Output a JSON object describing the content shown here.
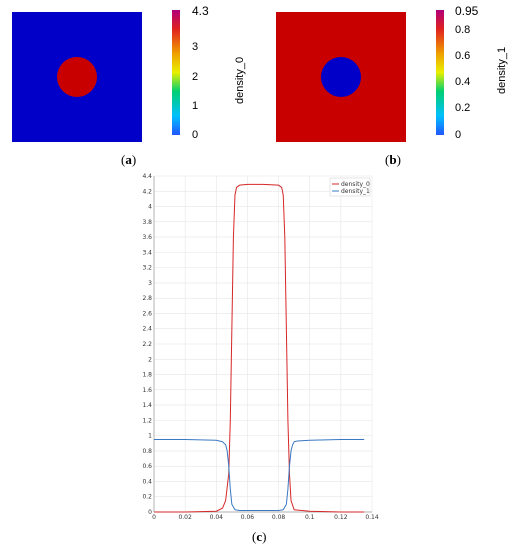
{
  "panels": {
    "a": {
      "label_open": "(",
      "label_letter": "a",
      "label_close": ")"
    },
    "b": {
      "label_open": "(",
      "label_letter": "b",
      "label_close": ")"
    },
    "c": {
      "label_open": "(",
      "label_letter": "c",
      "label_close": ")"
    }
  },
  "colors": {
    "low_blue": "#0000c8",
    "high_red": "#c80000",
    "series_density_0": "#d62728",
    "series_density_1": "#3a78c2"
  },
  "chart_data": [
    {
      "type": "heatmap",
      "panel": "a",
      "description_shape": "disk-in-square",
      "inside_value": 4.3,
      "outside_value": 0,
      "colorbar": {
        "title": "density_0",
        "range": [
          0,
          4.3
        ],
        "ticks": [
          "0",
          "1",
          "2",
          "3",
          "4.3"
        ],
        "tick_values": [
          0,
          1,
          2,
          3,
          4.3
        ]
      }
    },
    {
      "type": "heatmap",
      "panel": "b",
      "description_shape": "disk-in-square",
      "inside_value": 0,
      "outside_value": 0.95,
      "colorbar": {
        "title": "density_1",
        "range": [
          0,
          0.95
        ],
        "ticks": [
          "0",
          "0.2",
          "0.4",
          "0.6",
          "0.8",
          "0.95"
        ],
        "tick_values": [
          0,
          0.2,
          0.4,
          0.6,
          0.8,
          0.95
        ]
      }
    },
    {
      "type": "line",
      "panel": "c",
      "xlim": [
        0,
        0.14
      ],
      "ylim": [
        0,
        4.4
      ],
      "grid": true,
      "legend_position": "top-right",
      "x_ticks": [
        "0",
        "0.02",
        "0.04",
        "0.06",
        "0.08",
        "0.1",
        "0.12",
        "0.14"
      ],
      "x_tick_values": [
        0,
        0.02,
        0.04,
        0.06,
        0.08,
        0.1,
        0.12,
        0.14
      ],
      "y_ticks": [
        "0",
        "0.2",
        "0.4",
        "0.6",
        "0.8",
        "1",
        "1.2",
        "1.4",
        "1.6",
        "1.8",
        "2",
        "2.2",
        "2.4",
        "2.6",
        "2.8",
        "3",
        "3.2",
        "3.4",
        "3.6",
        "3.8",
        "4",
        "4.2",
        "4.4"
      ],
      "y_tick_values": [
        0,
        0.2,
        0.4,
        0.6,
        0.8,
        1,
        1.2,
        1.4,
        1.6,
        1.8,
        2,
        2.2,
        2.4,
        2.6,
        2.8,
        3,
        3.2,
        3.4,
        3.6,
        3.8,
        4,
        4.2,
        4.4
      ],
      "series": [
        {
          "name": "density_0",
          "color": "#d62728",
          "x": [
            0,
            0.02,
            0.04,
            0.044,
            0.046,
            0.048,
            0.049,
            0.05,
            0.051,
            0.052,
            0.053,
            0.055,
            0.06,
            0.07,
            0.08,
            0.082,
            0.083,
            0.084,
            0.085,
            0.086,
            0.087,
            0.088,
            0.09,
            0.1,
            0.12,
            0.135
          ],
          "y": [
            0,
            0,
            0.01,
            0.05,
            0.15,
            0.5,
            1.2,
            2.4,
            3.6,
            4.15,
            4.25,
            4.28,
            4.29,
            4.29,
            4.28,
            4.25,
            4.15,
            3.6,
            2.4,
            1.2,
            0.5,
            0.15,
            0.03,
            0.01,
            0,
            0
          ]
        },
        {
          "name": "density_1",
          "color": "#3a78c2",
          "x": [
            0,
            0.02,
            0.04,
            0.044,
            0.046,
            0.047,
            0.048,
            0.049,
            0.05,
            0.052,
            0.055,
            0.06,
            0.07,
            0.08,
            0.083,
            0.085,
            0.086,
            0.087,
            0.088,
            0.089,
            0.09,
            0.092,
            0.1,
            0.12,
            0.135
          ],
          "y": [
            0.95,
            0.95,
            0.94,
            0.92,
            0.88,
            0.8,
            0.6,
            0.3,
            0.1,
            0.03,
            0.02,
            0.02,
            0.02,
            0.02,
            0.03,
            0.1,
            0.3,
            0.6,
            0.8,
            0.88,
            0.92,
            0.93,
            0.94,
            0.95,
            0.95
          ]
        }
      ]
    }
  ]
}
